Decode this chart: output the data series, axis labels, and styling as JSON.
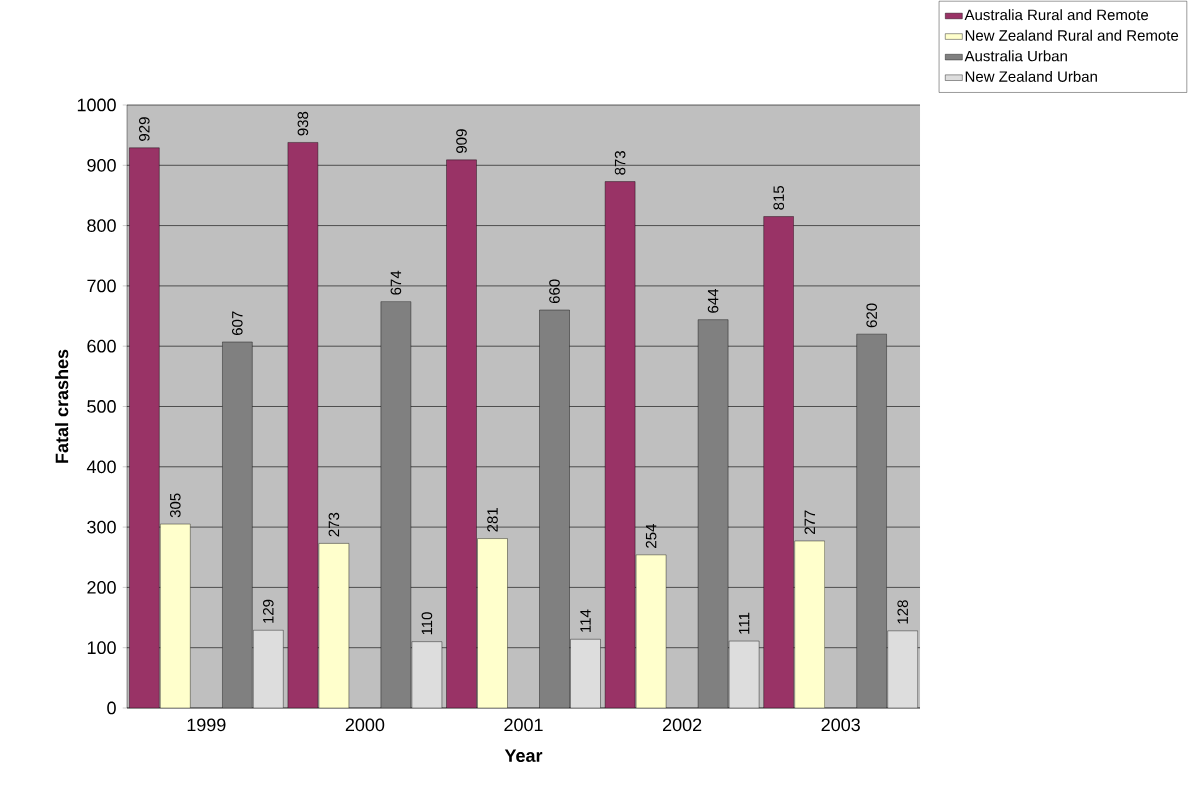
{
  "chart_data": {
    "type": "bar",
    "xlabel": "Year",
    "ylabel": "Fatal crashes",
    "categories": [
      "1999",
      "2000",
      "2001",
      "2002",
      "2003"
    ],
    "series": [
      {
        "name": "Australia Rural and Remote",
        "color": "#993366",
        "values": [
          929,
          938,
          909,
          873,
          815
        ]
      },
      {
        "name": "New Zealand Rural and Remote",
        "color": "#ffffcc",
        "values": [
          305,
          273,
          281,
          254,
          277
        ]
      },
      {
        "name": "Australia Urban",
        "color": "#808080",
        "values": [
          607,
          674,
          660,
          644,
          620
        ]
      },
      {
        "name": "New Zealand Urban",
        "color": "#dddddd",
        "values": [
          129,
          110,
          114,
          111,
          128
        ]
      }
    ],
    "ylim": [
      0,
      1000
    ],
    "yticks": [
      0,
      100,
      200,
      300,
      400,
      500,
      600,
      700,
      800,
      900,
      1000
    ],
    "grid": "y",
    "legend": "top right",
    "data_labels": true
  }
}
